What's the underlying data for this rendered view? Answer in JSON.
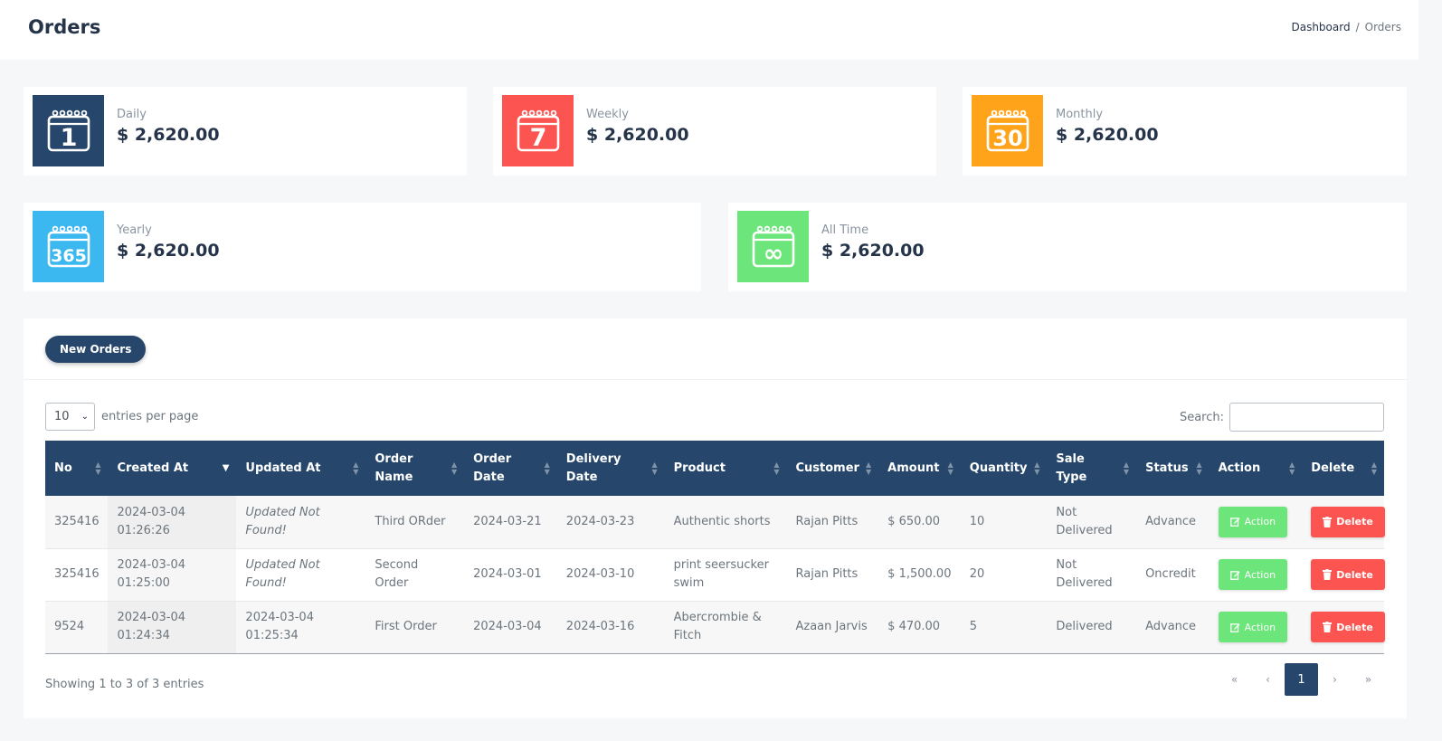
{
  "header": {
    "title": "Orders",
    "breadcrumb": [
      {
        "label": "Dashboard"
      },
      {
        "label": "Orders"
      }
    ],
    "breadcrumb_separator": "/"
  },
  "stats": [
    {
      "label": "Daily",
      "value": "$ 2,620.00",
      "icon_number": "1",
      "icon": "calendar-1-icon",
      "color": "#26476b"
    },
    {
      "label": "Weekly",
      "value": "$ 2,620.00",
      "icon_number": "7",
      "icon": "calendar-7-icon",
      "color": "#fc5450"
    },
    {
      "label": "Monthly",
      "value": "$ 2,620.00",
      "icon_number": "30",
      "icon": "calendar-30-icon",
      "color": "#ffa31a"
    },
    {
      "label": "Yearly",
      "value": "$ 2,620.00",
      "icon_number": "365",
      "icon": "calendar-365-icon",
      "color": "#3bb8ef"
    },
    {
      "label": "All Time",
      "value": "$ 2,620.00",
      "icon_number": "∞",
      "icon": "calendar-infinity-icon",
      "color": "#6ce57a"
    }
  ],
  "card": {
    "new_orders_label": "New Orders"
  },
  "controls": {
    "entries_value": "10",
    "entries_label": "entries per page",
    "search_label": "Search:",
    "search_value": "",
    "search_placeholder": ""
  },
  "table": {
    "columns": [
      "No",
      "Created At",
      "Updated At",
      "Order Name",
      "Order Date",
      "Delivery Date",
      "Product",
      "Customer",
      "Amount",
      "Quantity",
      "Sale Type",
      "Status",
      "Action",
      "Delete"
    ],
    "sorted_column": "Created At",
    "rows": [
      {
        "no": "325416",
        "created": "2024-03-04 01:26:26",
        "updated": "Updated Not Found!",
        "order_name": "Third ORder",
        "order_date": "2024-03-21",
        "delivery_date": "2024-03-23",
        "product": "Authentic shorts",
        "customer": "Rajan Pitts",
        "amount": "$ 650.00",
        "quantity": "10",
        "sale_type": "Not Delivered",
        "status": "Advance",
        "action_label": "Action",
        "delete_label": "Delete"
      },
      {
        "no": "325416",
        "created": "2024-03-04 01:25:00",
        "updated": "Updated Not Found!",
        "order_name": "Second Order",
        "order_date": "2024-03-01",
        "delivery_date": "2024-03-10",
        "product": "print seersucker swim",
        "customer": "Rajan Pitts",
        "amount": "$ 1,500.00",
        "quantity": "20",
        "sale_type": "Not Delivered",
        "status": "Oncredit",
        "action_label": "Action",
        "delete_label": "Delete"
      },
      {
        "no": "9524",
        "created": "2024-03-04 01:24:34",
        "updated": "2024-03-04 01:25:34",
        "order_name": "First Order",
        "order_date": "2024-03-04",
        "delivery_date": "2024-03-16",
        "product": "Abercrombie & Fitch",
        "customer": "Azaan Jarvis",
        "amount": "$ 470.00",
        "quantity": "5",
        "sale_type": "Delivered",
        "status": "Advance",
        "action_label": "Action",
        "delete_label": "Delete"
      }
    ]
  },
  "footer": {
    "showing": "Showing 1 to 3 of 3 entries",
    "pagination": {
      "first": "«",
      "prev": "‹",
      "current": "1",
      "next": "›",
      "last": "»"
    }
  }
}
